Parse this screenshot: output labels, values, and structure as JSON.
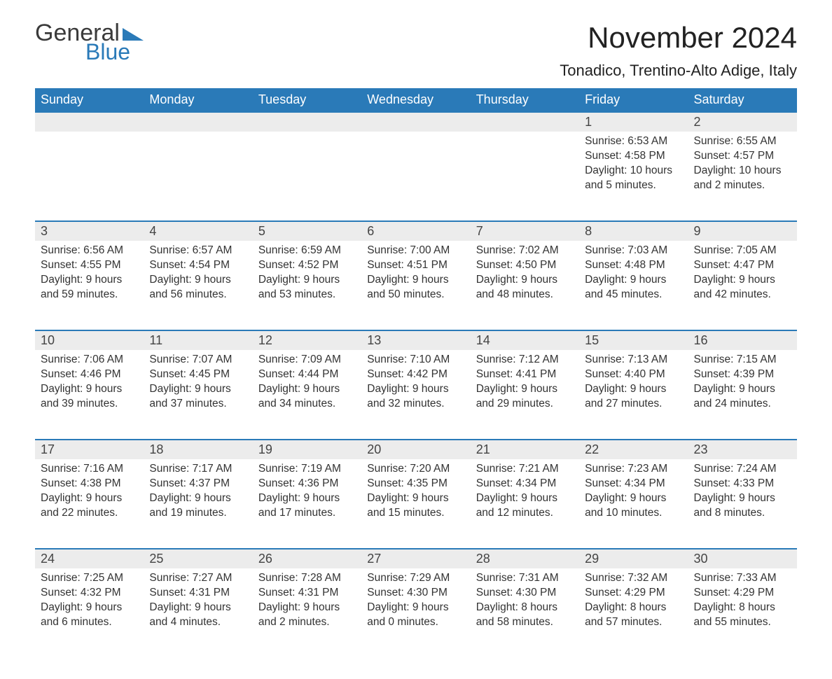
{
  "brand": {
    "line1": "General",
    "line2": "Blue",
    "accent_color": "#2a7ab8",
    "text_color": "#3a3a3a"
  },
  "title": "November 2024",
  "location": "Tonadico, Trentino-Alto Adige, Italy",
  "colors": {
    "header_bg": "#2a7ab8",
    "header_text": "#ffffff",
    "row_divider": "#2a7ab8",
    "daynum_bg": "#ececec",
    "body_text": "#333333",
    "page_bg": "#ffffff"
  },
  "typography": {
    "title_fontsize": 42,
    "location_fontsize": 22,
    "header_fontsize": 18,
    "daynum_fontsize": 18,
    "cell_fontsize": 15.5
  },
  "layout": {
    "columns": 7,
    "rows": 5,
    "first_day_column_index": 5
  },
  "weekdays": [
    "Sunday",
    "Monday",
    "Tuesday",
    "Wednesday",
    "Thursday",
    "Friday",
    "Saturday"
  ],
  "labels": {
    "sunrise": "Sunrise",
    "sunset": "Sunset",
    "daylight": "Daylight"
  },
  "days": [
    {
      "n": 1,
      "sunrise": "6:53 AM",
      "sunset": "4:58 PM",
      "daylight": "10 hours and 5 minutes."
    },
    {
      "n": 2,
      "sunrise": "6:55 AM",
      "sunset": "4:57 PM",
      "daylight": "10 hours and 2 minutes."
    },
    {
      "n": 3,
      "sunrise": "6:56 AM",
      "sunset": "4:55 PM",
      "daylight": "9 hours and 59 minutes."
    },
    {
      "n": 4,
      "sunrise": "6:57 AM",
      "sunset": "4:54 PM",
      "daylight": "9 hours and 56 minutes."
    },
    {
      "n": 5,
      "sunrise": "6:59 AM",
      "sunset": "4:52 PM",
      "daylight": "9 hours and 53 minutes."
    },
    {
      "n": 6,
      "sunrise": "7:00 AM",
      "sunset": "4:51 PM",
      "daylight": "9 hours and 50 minutes."
    },
    {
      "n": 7,
      "sunrise": "7:02 AM",
      "sunset": "4:50 PM",
      "daylight": "9 hours and 48 minutes."
    },
    {
      "n": 8,
      "sunrise": "7:03 AM",
      "sunset": "4:48 PM",
      "daylight": "9 hours and 45 minutes."
    },
    {
      "n": 9,
      "sunrise": "7:05 AM",
      "sunset": "4:47 PM",
      "daylight": "9 hours and 42 minutes."
    },
    {
      "n": 10,
      "sunrise": "7:06 AM",
      "sunset": "4:46 PM",
      "daylight": "9 hours and 39 minutes."
    },
    {
      "n": 11,
      "sunrise": "7:07 AM",
      "sunset": "4:45 PM",
      "daylight": "9 hours and 37 minutes."
    },
    {
      "n": 12,
      "sunrise": "7:09 AM",
      "sunset": "4:44 PM",
      "daylight": "9 hours and 34 minutes."
    },
    {
      "n": 13,
      "sunrise": "7:10 AM",
      "sunset": "4:42 PM",
      "daylight": "9 hours and 32 minutes."
    },
    {
      "n": 14,
      "sunrise": "7:12 AM",
      "sunset": "4:41 PM",
      "daylight": "9 hours and 29 minutes."
    },
    {
      "n": 15,
      "sunrise": "7:13 AM",
      "sunset": "4:40 PM",
      "daylight": "9 hours and 27 minutes."
    },
    {
      "n": 16,
      "sunrise": "7:15 AM",
      "sunset": "4:39 PM",
      "daylight": "9 hours and 24 minutes."
    },
    {
      "n": 17,
      "sunrise": "7:16 AM",
      "sunset": "4:38 PM",
      "daylight": "9 hours and 22 minutes."
    },
    {
      "n": 18,
      "sunrise": "7:17 AM",
      "sunset": "4:37 PM",
      "daylight": "9 hours and 19 minutes."
    },
    {
      "n": 19,
      "sunrise": "7:19 AM",
      "sunset": "4:36 PM",
      "daylight": "9 hours and 17 minutes."
    },
    {
      "n": 20,
      "sunrise": "7:20 AM",
      "sunset": "4:35 PM",
      "daylight": "9 hours and 15 minutes."
    },
    {
      "n": 21,
      "sunrise": "7:21 AM",
      "sunset": "4:34 PM",
      "daylight": "9 hours and 12 minutes."
    },
    {
      "n": 22,
      "sunrise": "7:23 AM",
      "sunset": "4:34 PM",
      "daylight": "9 hours and 10 minutes."
    },
    {
      "n": 23,
      "sunrise": "7:24 AM",
      "sunset": "4:33 PM",
      "daylight": "9 hours and 8 minutes."
    },
    {
      "n": 24,
      "sunrise": "7:25 AM",
      "sunset": "4:32 PM",
      "daylight": "9 hours and 6 minutes."
    },
    {
      "n": 25,
      "sunrise": "7:27 AM",
      "sunset": "4:31 PM",
      "daylight": "9 hours and 4 minutes."
    },
    {
      "n": 26,
      "sunrise": "7:28 AM",
      "sunset": "4:31 PM",
      "daylight": "9 hours and 2 minutes."
    },
    {
      "n": 27,
      "sunrise": "7:29 AM",
      "sunset": "4:30 PM",
      "daylight": "9 hours and 0 minutes."
    },
    {
      "n": 28,
      "sunrise": "7:31 AM",
      "sunset": "4:30 PM",
      "daylight": "8 hours and 58 minutes."
    },
    {
      "n": 29,
      "sunrise": "7:32 AM",
      "sunset": "4:29 PM",
      "daylight": "8 hours and 57 minutes."
    },
    {
      "n": 30,
      "sunrise": "7:33 AM",
      "sunset": "4:29 PM",
      "daylight": "8 hours and 55 minutes."
    }
  ]
}
